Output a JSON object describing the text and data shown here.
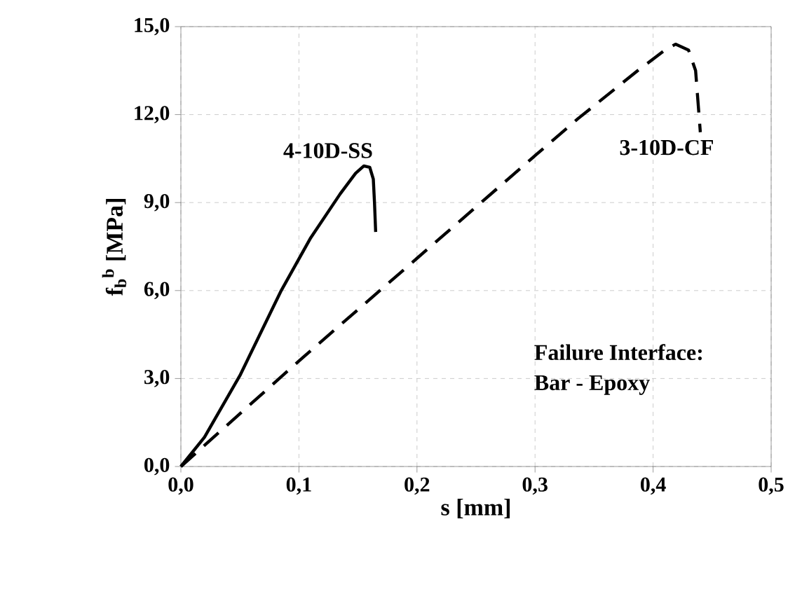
{
  "chart_data": {
    "type": "line",
    "xlabel": "s [mm]",
    "ylabel": "f$_{b}$$^{b}$ [MPa]",
    "xlim": [
      0,
      0.5
    ],
    "xticks": [
      {
        "value": 0,
        "label": "0,0"
      },
      {
        "value": 0.1,
        "label": "0,1"
      },
      {
        "value": 0.2,
        "label": "0,2"
      },
      {
        "value": 0.3,
        "label": "0,3"
      },
      {
        "value": 0.4,
        "label": "0,4"
      },
      {
        "value": 0.5,
        "label": "0,5"
      }
    ],
    "ylim": [
      0,
      15
    ],
    "yticks": [
      {
        "value": 0,
        "label": "0,0"
      },
      {
        "value": 3,
        "label": "3,0"
      },
      {
        "value": 6,
        "label": "6,0"
      },
      {
        "value": 9,
        "label": "9,0"
      },
      {
        "value": 12,
        "label": "12,0"
      },
      {
        "value": 15,
        "label": "15,0"
      }
    ],
    "grid": true,
    "marker": "none",
    "series": [
      {
        "name": "4-10D-SS",
        "color": "#000000",
        "line_style": "solid",
        "x": [
          0,
          0.02,
          0.05,
          0.085,
          0.11,
          0.135,
          0.148,
          0.155,
          0.16,
          0.163,
          0.164,
          0.165
        ],
        "values": [
          0,
          1.0,
          3.1,
          6.0,
          7.8,
          9.3,
          10.0,
          10.25,
          10.2,
          9.8,
          9.0,
          8.0
        ]
      },
      {
        "name": "3-10D-CF",
        "color": "#000000",
        "line_style": "dashed",
        "x": [
          0,
          0.1,
          0.2,
          0.3,
          0.336,
          0.387,
          0.41,
          0.419,
          0.43,
          0.436,
          0.44
        ],
        "values": [
          0,
          3.6,
          7.1,
          10.6,
          11.85,
          13.5,
          14.2,
          14.4,
          14.2,
          13.5,
          11.4
        ]
      }
    ],
    "annotations": [
      "Failure Interface:",
      "Bar - Epoxy"
    ]
  }
}
